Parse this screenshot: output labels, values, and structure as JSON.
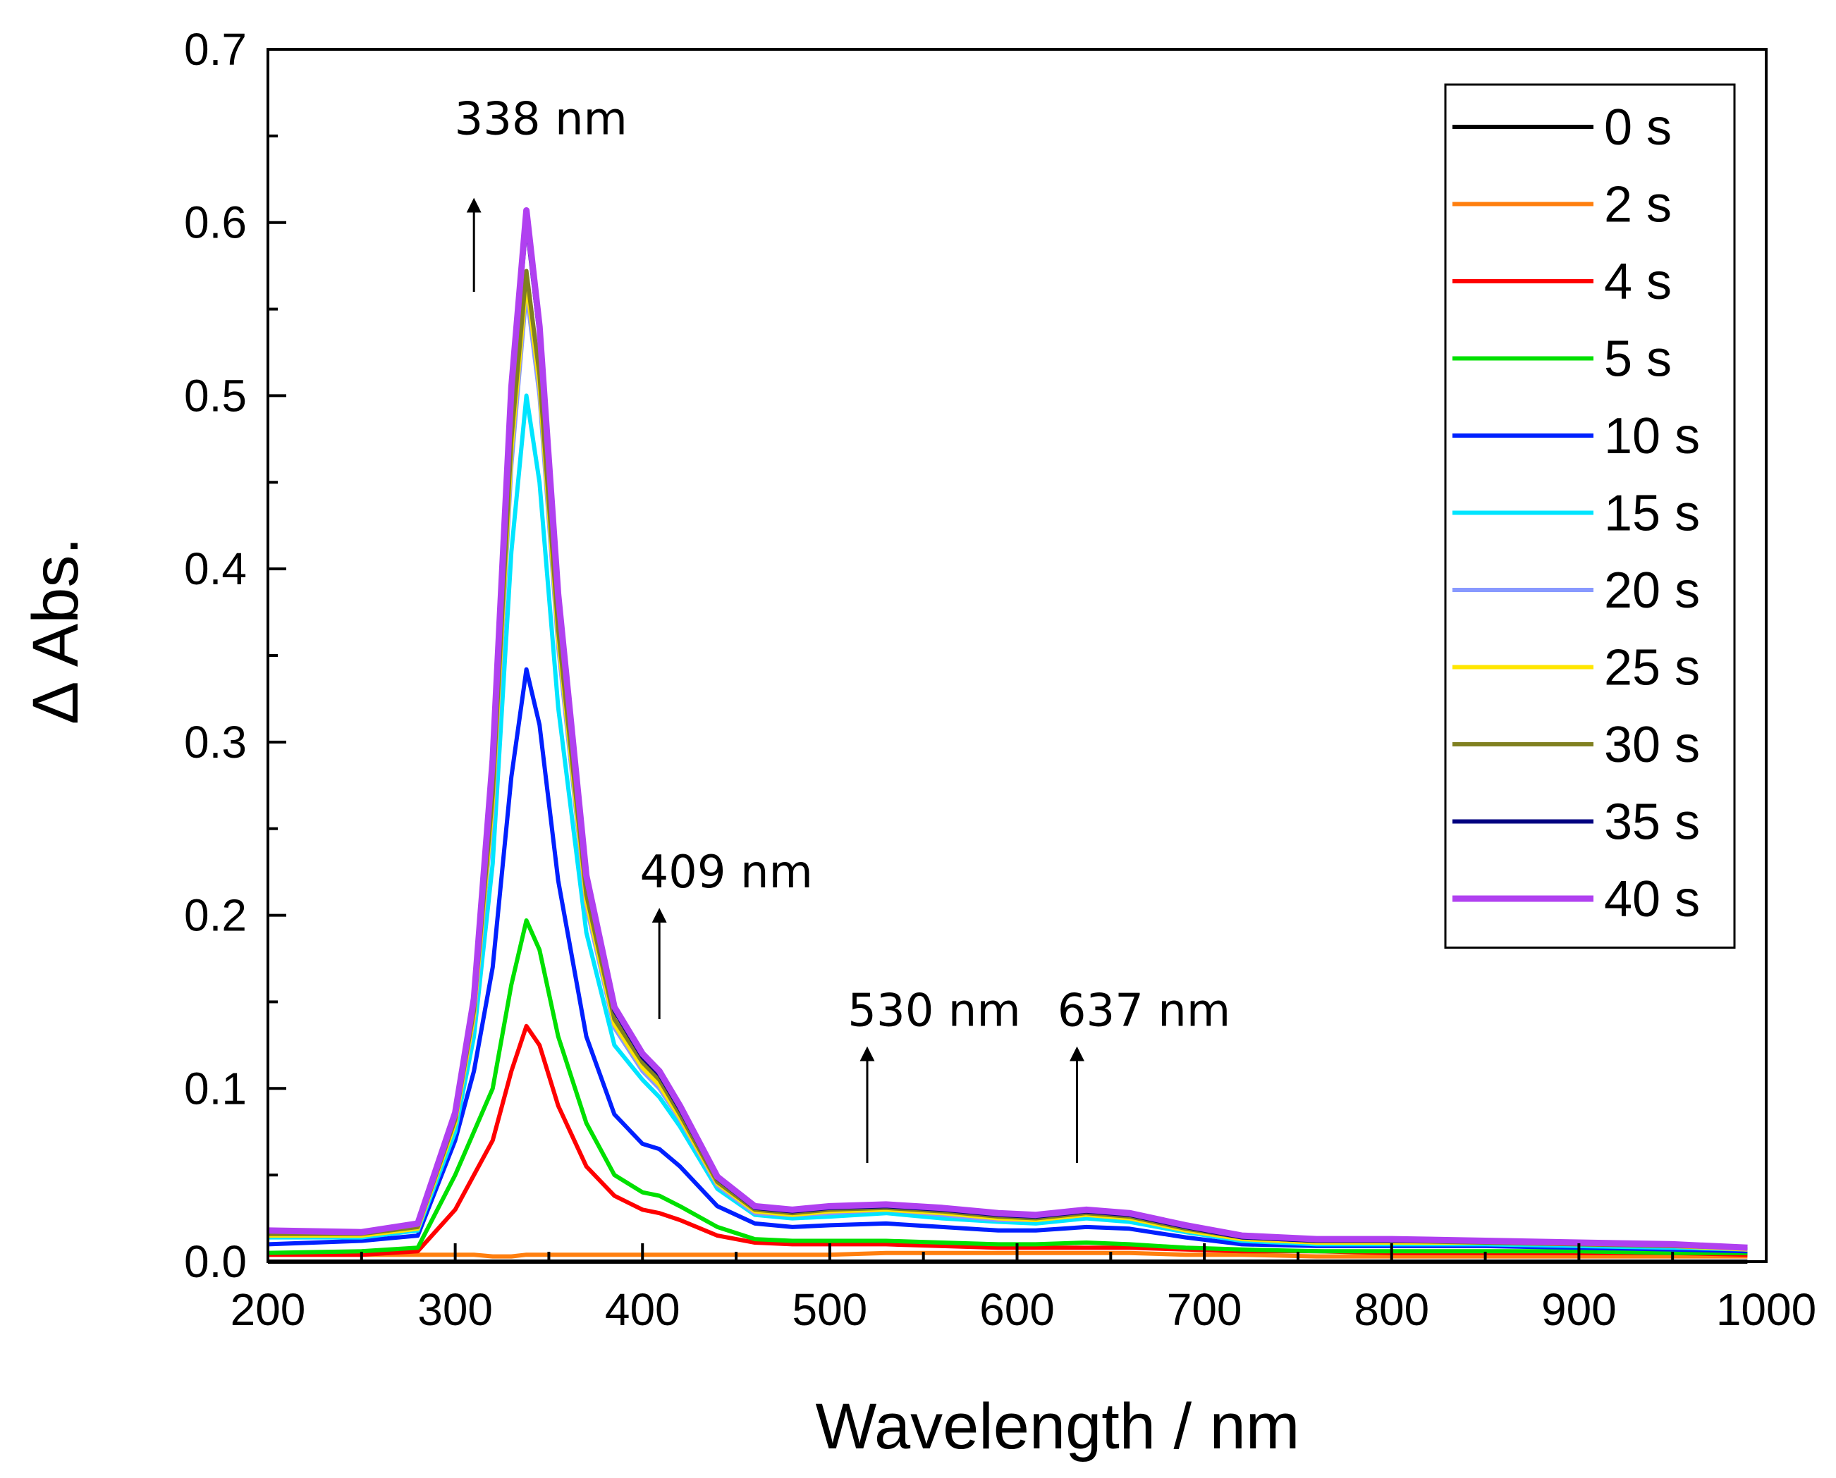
{
  "chart_data": {
    "type": "line",
    "title": "",
    "xlabel": "Wavelength / nm",
    "ylabel": "Δ Abs.",
    "xlim": [
      200,
      1000
    ],
    "ylim": [
      0.0,
      0.7
    ],
    "xticks": [
      "200",
      "300",
      "400",
      "500",
      "600",
      "700",
      "800",
      "900",
      "1000"
    ],
    "yticks": [
      "0.0",
      "0.1",
      "0.2",
      "0.3",
      "0.4",
      "0.5",
      "0.6",
      "0.7"
    ],
    "grid": false,
    "legend_position": "top-right",
    "x": [
      200,
      250,
      280,
      300,
      310,
      320,
      330,
      338,
      345,
      355,
      370,
      385,
      400,
      409,
      420,
      440,
      460,
      480,
      500,
      530,
      560,
      590,
      610,
      637,
      660,
      690,
      720,
      760,
      800,
      850,
      900,
      950,
      990
    ],
    "series": [
      {
        "name": "0 s",
        "color": "#000000",
        "values": [
          0.0,
          0.0,
          0.0,
          0.0,
          0.0,
          0.0,
          0.0,
          0.0,
          0.0,
          0.0,
          0.0,
          0.0,
          0.0,
          0.0,
          0.0,
          0.0,
          0.0,
          0.0,
          0.0,
          0.0,
          0.0,
          0.0,
          0.0,
          0.0,
          0.0,
          0.0,
          0.0,
          0.0,
          0.0,
          0.0,
          0.0,
          0.0,
          0.0
        ]
      },
      {
        "name": "2 s",
        "color": "#ff7f0e",
        "values": [
          0.004,
          0.004,
          0.004,
          0.004,
          0.004,
          0.003,
          0.003,
          0.004,
          0.004,
          0.004,
          0.004,
          0.004,
          0.004,
          0.004,
          0.004,
          0.004,
          0.004,
          0.004,
          0.004,
          0.005,
          0.005,
          0.005,
          0.005,
          0.005,
          0.005,
          0.004,
          0.004,
          0.003,
          0.003,
          0.003,
          0.003,
          0.003,
          0.003
        ]
      },
      {
        "name": "4 s",
        "color": "#ff0000",
        "values": [
          0.004,
          0.004,
          0.006,
          0.03,
          0.05,
          0.07,
          0.11,
          0.136,
          0.125,
          0.09,
          0.055,
          0.038,
          0.03,
          0.028,
          0.024,
          0.015,
          0.011,
          0.01,
          0.01,
          0.01,
          0.009,
          0.008,
          0.008,
          0.008,
          0.008,
          0.007,
          0.006,
          0.006,
          0.005,
          0.005,
          0.005,
          0.005,
          0.004
        ]
      },
      {
        "name": "5 s",
        "color": "#00e000",
        "values": [
          0.005,
          0.006,
          0.008,
          0.05,
          0.075,
          0.1,
          0.16,
          0.197,
          0.18,
          0.13,
          0.08,
          0.05,
          0.04,
          0.038,
          0.032,
          0.02,
          0.013,
          0.012,
          0.012,
          0.012,
          0.011,
          0.01,
          0.01,
          0.011,
          0.01,
          0.008,
          0.007,
          0.006,
          0.006,
          0.006,
          0.006,
          0.005,
          0.005
        ]
      },
      {
        "name": "10 s",
        "color": "#0020ff",
        "values": [
          0.01,
          0.012,
          0.015,
          0.07,
          0.11,
          0.17,
          0.28,
          0.342,
          0.31,
          0.22,
          0.13,
          0.085,
          0.068,
          0.065,
          0.055,
          0.032,
          0.022,
          0.02,
          0.021,
          0.022,
          0.02,
          0.018,
          0.018,
          0.02,
          0.019,
          0.014,
          0.01,
          0.009,
          0.009,
          0.009,
          0.008,
          0.007,
          0.006
        ]
      },
      {
        "name": "15 s",
        "color": "#00e5ff",
        "values": [
          0.014,
          0.014,
          0.018,
          0.075,
          0.13,
          0.23,
          0.41,
          0.5,
          0.45,
          0.32,
          0.19,
          0.125,
          0.105,
          0.095,
          0.078,
          0.042,
          0.027,
          0.025,
          0.026,
          0.028,
          0.025,
          0.023,
          0.022,
          0.025,
          0.023,
          0.017,
          0.012,
          0.01,
          0.01,
          0.01,
          0.009,
          0.008,
          0.007
        ]
      },
      {
        "name": "20 s",
        "color": "#8899ff",
        "values": [
          0.015,
          0.015,
          0.019,
          0.08,
          0.14,
          0.26,
          0.46,
          0.56,
          0.5,
          0.355,
          0.205,
          0.135,
          0.11,
          0.1,
          0.082,
          0.044,
          0.028,
          0.027,
          0.028,
          0.03,
          0.027,
          0.024,
          0.024,
          0.027,
          0.025,
          0.018,
          0.013,
          0.011,
          0.011,
          0.011,
          0.01,
          0.009,
          0.007
        ]
      },
      {
        "name": "25 s",
        "color": "#ffe600",
        "values": [
          0.015,
          0.015,
          0.019,
          0.08,
          0.142,
          0.265,
          0.468,
          0.566,
          0.506,
          0.36,
          0.208,
          0.137,
          0.112,
          0.102,
          0.083,
          0.045,
          0.029,
          0.027,
          0.029,
          0.03,
          0.028,
          0.025,
          0.024,
          0.027,
          0.025,
          0.018,
          0.013,
          0.011,
          0.011,
          0.011,
          0.01,
          0.009,
          0.007
        ]
      },
      {
        "name": "30 s",
        "color": "#808020",
        "values": [
          0.016,
          0.016,
          0.02,
          0.082,
          0.145,
          0.27,
          0.475,
          0.572,
          0.512,
          0.365,
          0.212,
          0.14,
          0.115,
          0.105,
          0.085,
          0.046,
          0.03,
          0.028,
          0.03,
          0.031,
          0.029,
          0.026,
          0.025,
          0.028,
          0.026,
          0.019,
          0.014,
          0.012,
          0.012,
          0.011,
          0.01,
          0.009,
          0.008
        ]
      },
      {
        "name": "35 s",
        "color": "#000080",
        "values": [
          0.018,
          0.017,
          0.022,
          0.085,
          0.15,
          0.285,
          0.5,
          0.6,
          0.535,
          0.38,
          0.22,
          0.145,
          0.118,
          0.108,
          0.088,
          0.048,
          0.031,
          0.029,
          0.031,
          0.032,
          0.03,
          0.027,
          0.026,
          0.029,
          0.027,
          0.02,
          0.014,
          0.012,
          0.012,
          0.012,
          0.011,
          0.01,
          0.008
        ]
      },
      {
        "name": "40 s",
        "color": "#b040f0",
        "values": [
          0.018,
          0.017,
          0.022,
          0.086,
          0.152,
          0.29,
          0.505,
          0.607,
          0.54,
          0.385,
          0.223,
          0.147,
          0.12,
          0.11,
          0.09,
          0.049,
          0.032,
          0.03,
          0.032,
          0.033,
          0.031,
          0.028,
          0.027,
          0.03,
          0.028,
          0.021,
          0.015,
          0.013,
          0.013,
          0.012,
          0.011,
          0.01,
          0.008
        ]
      }
    ],
    "annotations": [
      {
        "label": "338 nm",
        "x": 310,
        "arrow_y": [
          0.56,
          0.61
        ],
        "text_y": 0.66
      },
      {
        "label": "409 nm",
        "x": 409,
        "arrow_y": [
          0.14,
          0.2
        ],
        "text_y": 0.225
      },
      {
        "label": "530 nm",
        "x": 520,
        "arrow_y": [
          0.057,
          0.12
        ],
        "text_y": 0.145
      },
      {
        "label": "637 nm",
        "x": 632,
        "arrow_y": [
          0.057,
          0.12
        ],
        "text_y": 0.145
      }
    ]
  }
}
